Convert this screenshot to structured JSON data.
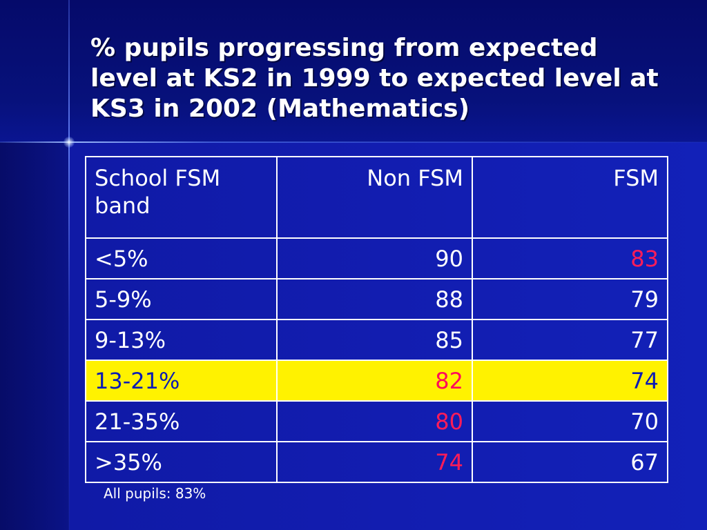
{
  "slide": {
    "title": "% pupils progressing from  expected\nlevel at KS2 in 1999 to expected level at\nKS3 in 2002 (Mathematics)",
    "footnote": "All pupils: 83%"
  },
  "table": {
    "headers": [
      "School FSM band",
      "Non FSM",
      "FSM"
    ],
    "rows": [
      {
        "band": "<5%",
        "non_fsm": "90",
        "fsm": "83"
      },
      {
        "band": "5-9%",
        "non_fsm": "88",
        "fsm": "79"
      },
      {
        "band": "9-13%",
        "non_fsm": "85",
        "fsm": "77"
      },
      {
        "band": "13-21%",
        "non_fsm": "82",
        "fsm": "74"
      },
      {
        "band": "21-35%",
        "non_fsm": "80",
        "fsm": "70"
      },
      {
        "band": ">35%",
        "non_fsm": "74",
        "fsm": "67"
      }
    ],
    "highlight_row_color": "#fff200",
    "highlight_text_color": "#0a1bb5",
    "emphasis_value_color": "#ff1c58"
  },
  "theme": {
    "background_color": "#101aa6",
    "text_color": "#ffffff"
  }
}
